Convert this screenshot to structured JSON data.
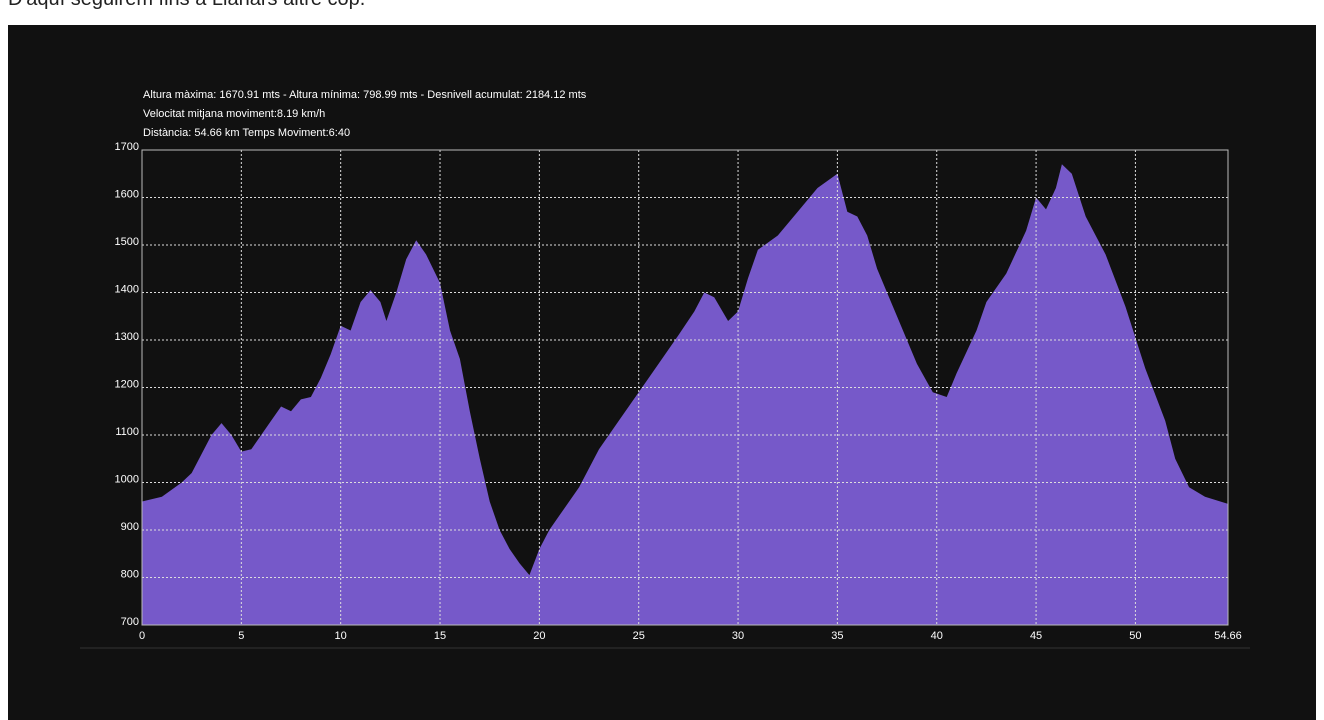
{
  "caption": "D'aquí seguirem fins a Llanars altre cop.",
  "chart_data": {
    "type": "area",
    "header": [
      "Altura màxima: 1670.91 mts - Altura mínima: 798.99 mts - Desnivell acumulat: 2184.12 mts",
      "Velocitat mitjana moviment:8.19 km/h",
      "Distància: 54.66 km  Temps Moviment:6:40"
    ],
    "x": [
      0,
      1,
      2,
      2.5,
      3,
      3.5,
      4,
      4.5,
      5,
      5.5,
      6,
      6.5,
      7,
      7.5,
      8,
      8.5,
      9,
      9.5,
      10,
      10.5,
      11,
      11.5,
      12,
      12.3,
      12.8,
      13.3,
      13.8,
      14.3,
      15,
      15.5,
      16,
      16.5,
      17,
      17.5,
      18,
      18.5,
      19,
      19.5,
      20,
      20.5,
      21,
      22,
      23,
      24,
      25,
      26,
      27,
      27.8,
      28.3,
      28.8,
      29.5,
      30,
      30.5,
      31,
      32,
      33,
      34,
      35,
      35.5,
      36,
      36.5,
      37,
      38,
      39,
      39.8,
      40.5,
      41,
      42,
      42.5,
      43.5,
      44.5,
      45,
      45.5,
      46,
      46.3,
      46.8,
      47.5,
      48.5,
      49.5,
      50.5,
      51.5,
      52,
      52.7,
      53.5,
      54.66
    ],
    "values": [
      960,
      970,
      1000,
      1020,
      1060,
      1100,
      1125,
      1100,
      1065,
      1070,
      1100,
      1130,
      1160,
      1150,
      1175,
      1180,
      1220,
      1270,
      1330,
      1320,
      1380,
      1405,
      1380,
      1340,
      1400,
      1470,
      1510,
      1480,
      1420,
      1320,
      1260,
      1150,
      1050,
      960,
      900,
      860,
      830,
      805,
      860,
      900,
      930,
      990,
      1070,
      1130,
      1190,
      1250,
      1310,
      1360,
      1400,
      1390,
      1340,
      1360,
      1430,
      1490,
      1520,
      1570,
      1620,
      1650,
      1570,
      1560,
      1520,
      1450,
      1350,
      1250,
      1190,
      1180,
      1230,
      1320,
      1380,
      1440,
      1530,
      1600,
      1575,
      1620,
      1670,
      1650,
      1560,
      1480,
      1370,
      1240,
      1130,
      1050,
      990,
      970,
      955
    ],
    "color": "#7659c9",
    "xlim": [
      0,
      54.66
    ],
    "xticks": [
      0,
      5,
      10,
      15,
      20,
      25,
      30,
      35,
      40,
      45,
      50,
      54.66
    ],
    "ylim": [
      700,
      1700
    ],
    "yticks": [
      700,
      800,
      900,
      1000,
      1100,
      1200,
      1300,
      1400,
      1500,
      1600,
      1700
    ],
    "grid": true
  }
}
